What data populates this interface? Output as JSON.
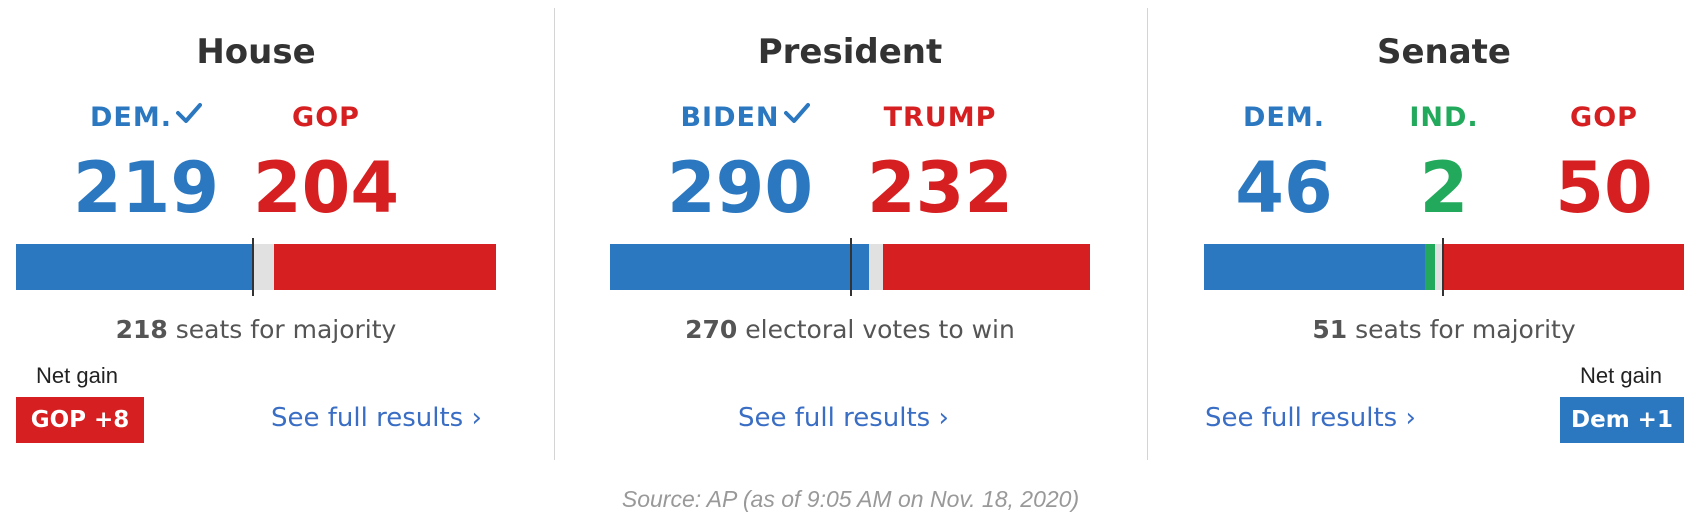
{
  "colors": {
    "dem": "#2b78c0",
    "gop": "#d61f21",
    "ind": "#22a95b",
    "uncalled": "#e1e1e1",
    "link": "#3a6ec4"
  },
  "house": {
    "title": "House",
    "dem_label": "DEM.",
    "dem_called": true,
    "dem_value": "219",
    "gop_label": "GOP",
    "gop_value": "204",
    "bar": {
      "total": 435,
      "dem": 219,
      "gop": 204,
      "threshold": 218
    },
    "majority_number": "218",
    "majority_text": " seats for majority",
    "net_gain_label": "Net gain",
    "net_gain_value": "GOP +8",
    "link": "See full results ›"
  },
  "president": {
    "title": "President",
    "dem_label": "BIDEN",
    "dem_called": true,
    "dem_value": "290",
    "gop_label": "TRUMP",
    "gop_value": "232",
    "bar": {
      "total": 538,
      "dem": 290,
      "gop": 232,
      "threshold": 270
    },
    "majority_number": "270",
    "majority_text": " electoral votes to win",
    "link": "See full results ›"
  },
  "senate": {
    "title": "Senate",
    "dem_label": "DEM.",
    "dem_value": "46",
    "ind_label": "IND.",
    "ind_value": "2",
    "gop_label": "GOP",
    "gop_value": "50",
    "bar": {
      "total": 100,
      "dem": 46,
      "ind": 2,
      "gop": 50,
      "threshold": 51
    },
    "majority_number": "51",
    "majority_text": " seats for majority",
    "net_gain_label": "Net gain",
    "net_gain_value": "Dem +1",
    "link": "See full results ›"
  },
  "source": "Source: AP (as of 9:05 AM on Nov. 18, 2020)",
  "icons": [
    "check-icon",
    "chevron-right-icon"
  ]
}
